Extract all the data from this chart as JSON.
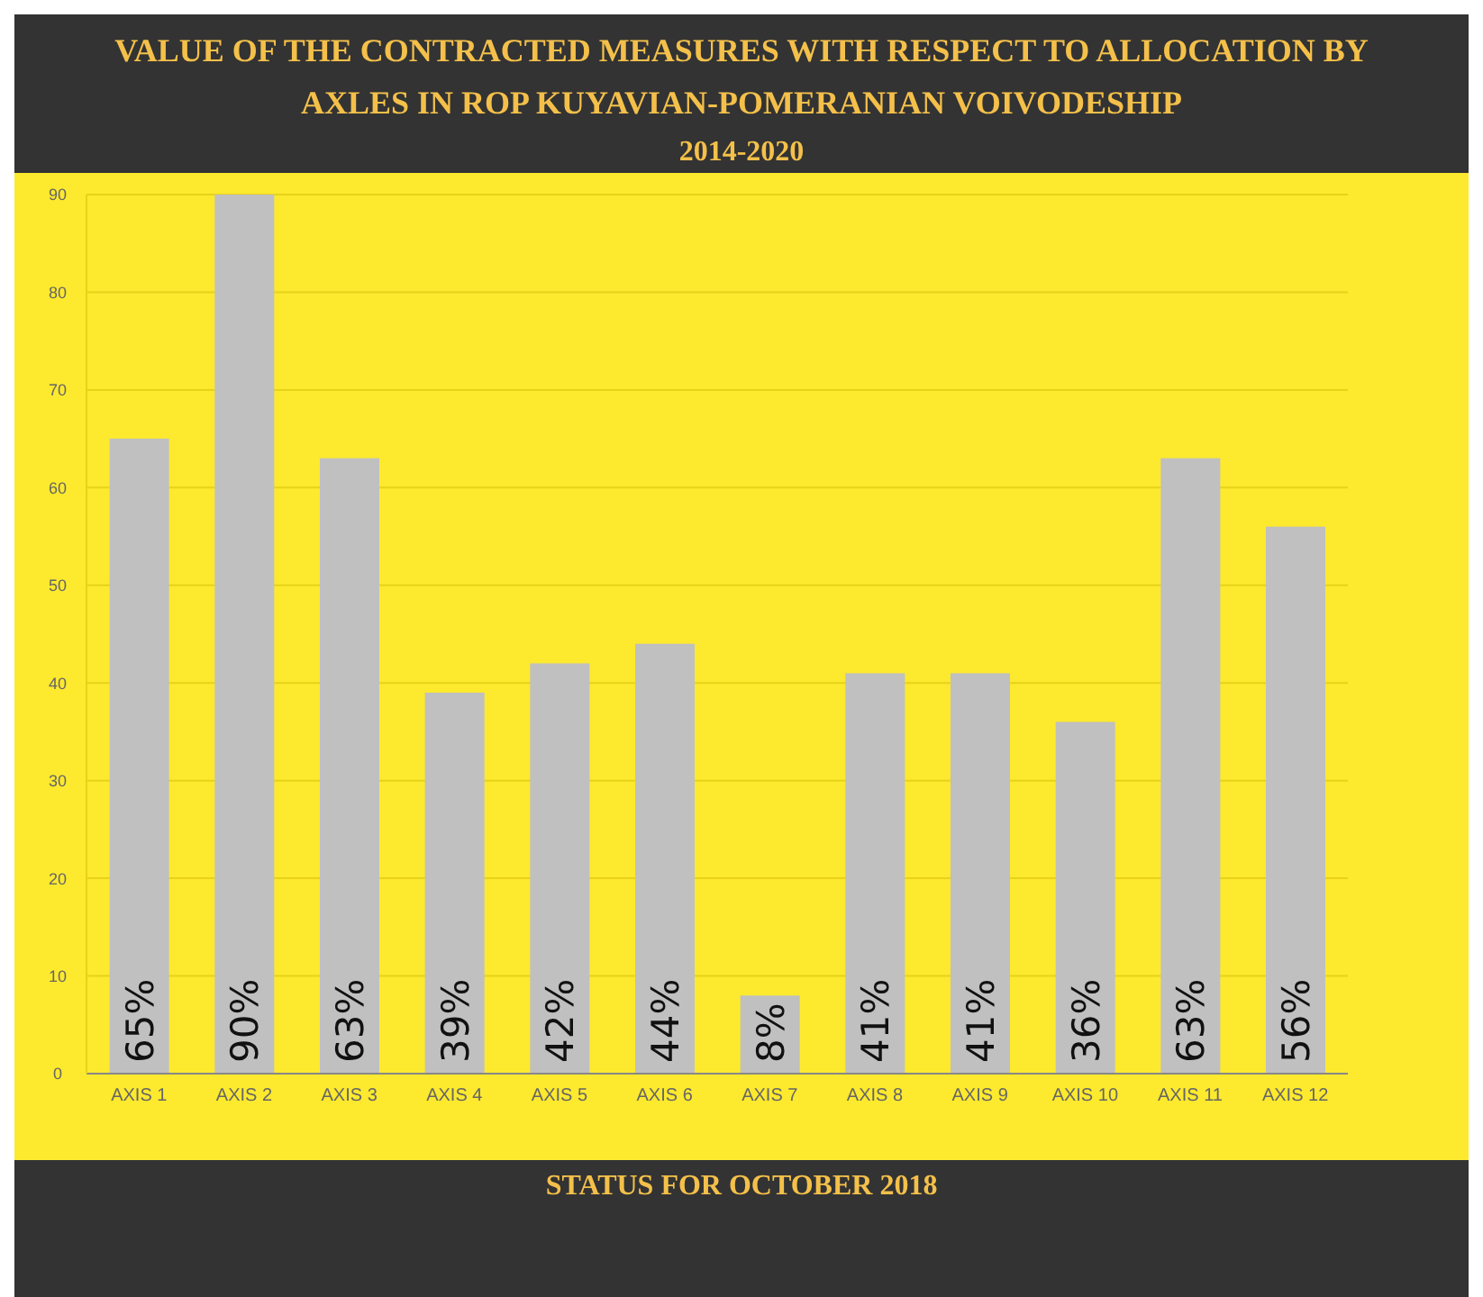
{
  "chart_data": {
    "type": "bar",
    "title": "VALUE OF THE CONTRACTED MEASURES WITH RESPECT TO ALLOCATION BY AXLES IN ROP  KUYAVIAN-POMERANIAN VOIVODESHIP",
    "subtitle": "2014-2020",
    "categories": [
      "AXIS 1",
      "AXIS 2",
      "AXIS 3",
      "AXIS 4",
      "AXIS 5",
      "AXIS 6",
      "AXIS 7",
      "AXIS 8",
      "AXIS 9",
      "AXIS 10",
      "AXIS 11",
      "AXIS 12"
    ],
    "values": [
      65,
      90,
      63,
      39,
      42,
      44,
      8,
      41,
      41,
      36,
      63,
      56
    ],
    "value_labels": [
      "65%",
      "90%",
      "63%",
      "39%",
      "42%",
      "44%",
      "8%",
      "41%",
      "41%",
      "36%",
      "63%",
      "56%"
    ],
    "color": "#c0c0c0",
    "ylim": [
      0,
      90
    ],
    "yticks": [
      0,
      10,
      20,
      30,
      40,
      50,
      60,
      70,
      80,
      90
    ],
    "grid": "y",
    "annotations": [
      "STATUS FOR OCTOBER 2018"
    ]
  }
}
